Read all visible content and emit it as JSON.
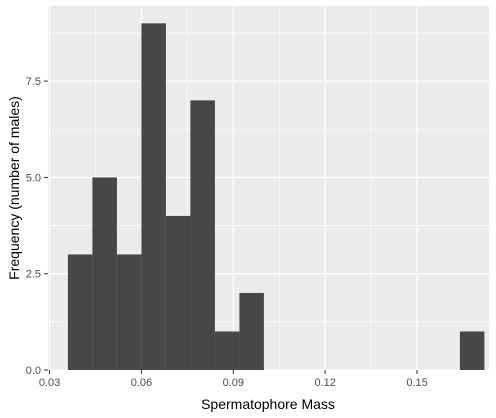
{
  "chart_data": {
    "type": "bar",
    "title": "",
    "xlabel": "Spermatophore Mass",
    "ylabel": "Frequency (number of males)",
    "xlim": [
      0.0295,
      0.1735
    ],
    "ylim": [
      0,
      9.45
    ],
    "x_ticks": [
      0.03,
      0.06,
      0.09,
      0.12,
      0.15
    ],
    "x_tick_labels": [
      "0.03",
      "0.06",
      "0.09",
      "0.12",
      "0.15"
    ],
    "y_ticks": [
      0,
      2.5,
      5,
      7.5
    ],
    "y_tick_labels": [
      "0.0",
      "2.5",
      "5.0",
      "7.5"
    ],
    "bin_width": 0.008,
    "bins": [
      {
        "start": 0.036,
        "count": 3
      },
      {
        "start": 0.044,
        "count": 5
      },
      {
        "start": 0.052,
        "count": 3
      },
      {
        "start": 0.06,
        "count": 9
      },
      {
        "start": 0.068,
        "count": 4
      },
      {
        "start": 0.076,
        "count": 7
      },
      {
        "start": 0.084,
        "count": 1
      },
      {
        "start": 0.092,
        "count": 2
      },
      {
        "start": 0.164,
        "count": 1
      }
    ],
    "grid": true,
    "legend": "none",
    "colors": {
      "bar": "#474747",
      "panel": "#ebebeb",
      "grid": "#ffffff"
    }
  }
}
